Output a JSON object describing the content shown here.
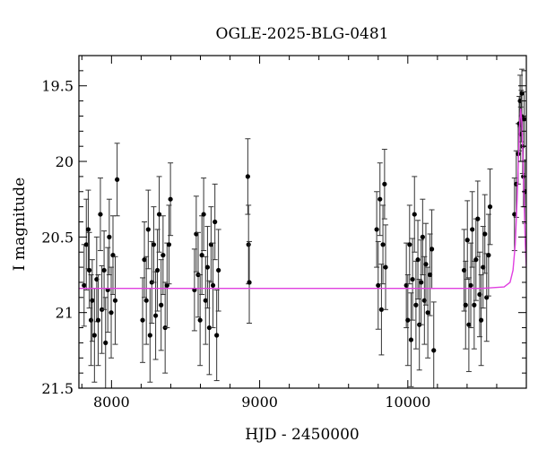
{
  "chart_data": {
    "type": "scatter",
    "title": "OGLE-2025-BLG-0481",
    "xlabel": "HJD - 2450000",
    "ylabel": "I magnitude",
    "xlim": [
      7780,
      10800
    ],
    "ylim": [
      19.3,
      21.5
    ],
    "y_inverted": true,
    "grid": false,
    "x_ticks": [
      8000,
      9000,
      10000
    ],
    "y_ticks": [
      19.5,
      20,
      20.5,
      21,
      21.5
    ],
    "y_tick_labels": [
      "19.5",
      "20",
      "20.5",
      "21",
      "21.5"
    ],
    "colors": {
      "points": "#000000",
      "model": "#e040e0"
    },
    "series": [
      {
        "kind": "points_with_errorbars",
        "points": [
          [
            7815,
            20.82,
            0.27
          ],
          [
            7830,
            20.55,
            0.3
          ],
          [
            7843,
            20.45,
            0.26
          ],
          [
            7850,
            20.72,
            0.25
          ],
          [
            7862,
            21.05,
            0.3
          ],
          [
            7870,
            20.92,
            0.27
          ],
          [
            7885,
            21.15,
            0.31
          ],
          [
            7900,
            20.78,
            0.28
          ],
          [
            7910,
            21.05,
            0.3
          ],
          [
            7925,
            20.35,
            0.24
          ],
          [
            7935,
            20.98,
            0.29
          ],
          [
            7950,
            20.72,
            0.26
          ],
          [
            7960,
            21.2,
            0.3
          ],
          [
            7975,
            20.85,
            0.28
          ],
          [
            7985,
            20.5,
            0.25
          ],
          [
            7998,
            21.0,
            0.3
          ],
          [
            8010,
            20.62,
            0.26
          ],
          [
            8025,
            20.92,
            0.29
          ],
          [
            8038,
            20.12,
            0.24
          ],
          [
            8210,
            21.05,
            0.28
          ],
          [
            8222,
            20.65,
            0.25
          ],
          [
            8235,
            20.92,
            0.29
          ],
          [
            8248,
            20.45,
            0.26
          ],
          [
            8260,
            21.15,
            0.31
          ],
          [
            8272,
            20.8,
            0.27
          ],
          [
            8285,
            20.55,
            0.25
          ],
          [
            8298,
            21.02,
            0.29
          ],
          [
            8310,
            20.72,
            0.27
          ],
          [
            8322,
            20.35,
            0.25
          ],
          [
            8335,
            20.95,
            0.3
          ],
          [
            8348,
            20.62,
            0.26
          ],
          [
            8362,
            21.1,
            0.3
          ],
          [
            8375,
            20.82,
            0.28
          ],
          [
            8388,
            20.55,
            0.26
          ],
          [
            8398,
            20.25,
            0.24
          ],
          [
            8560,
            20.85,
            0.27
          ],
          [
            8572,
            20.48,
            0.25
          ],
          [
            8585,
            20.75,
            0.28
          ],
          [
            8598,
            21.05,
            0.3
          ],
          [
            8610,
            20.62,
            0.26
          ],
          [
            8622,
            20.35,
            0.24
          ],
          [
            8635,
            20.92,
            0.29
          ],
          [
            8648,
            20.7,
            0.27
          ],
          [
            8660,
            21.1,
            0.31
          ],
          [
            8672,
            20.55,
            0.25
          ],
          [
            8685,
            20.82,
            0.28
          ],
          [
            8698,
            20.4,
            0.25
          ],
          [
            8710,
            21.15,
            0.3
          ],
          [
            8722,
            20.72,
            0.27
          ],
          [
            8920,
            20.1,
            0.25
          ],
          [
            8925,
            20.55,
            0.26
          ],
          [
            8930,
            20.8,
            0.27
          ],
          [
            9790,
            20.45,
            0.25
          ],
          [
            9800,
            20.82,
            0.29
          ],
          [
            9812,
            20.25,
            0.24
          ],
          [
            9822,
            20.98,
            0.3
          ],
          [
            9832,
            20.55,
            0.26
          ],
          [
            9843,
            20.15,
            0.23
          ],
          [
            9850,
            20.7,
            0.28
          ],
          [
            9990,
            20.82,
            0.28
          ],
          [
            10000,
            21.05,
            0.3
          ],
          [
            10012,
            20.55,
            0.26
          ],
          [
            10022,
            21.18,
            0.31
          ],
          [
            10032,
            20.78,
            0.27
          ],
          [
            10045,
            20.35,
            0.25
          ],
          [
            10055,
            20.95,
            0.29
          ],
          [
            10068,
            20.65,
            0.26
          ],
          [
            10078,
            21.08,
            0.3
          ],
          [
            10090,
            20.8,
            0.28
          ],
          [
            10100,
            20.5,
            0.25
          ],
          [
            10112,
            20.92,
            0.29
          ],
          [
            10122,
            20.68,
            0.27
          ],
          [
            10135,
            21.0,
            0.3
          ],
          [
            10150,
            20.75,
            0.27
          ],
          [
            10162,
            20.58,
            0.26
          ],
          [
            10175,
            21.25,
            0.32
          ],
          [
            10380,
            20.72,
            0.27
          ],
          [
            10390,
            20.95,
            0.29
          ],
          [
            10402,
            20.52,
            0.26
          ],
          [
            10412,
            21.08,
            0.31
          ],
          [
            10425,
            20.82,
            0.28
          ],
          [
            10435,
            20.45,
            0.25
          ],
          [
            10448,
            20.95,
            0.29
          ],
          [
            10460,
            20.65,
            0.27
          ],
          [
            10472,
            20.38,
            0.25
          ],
          [
            10485,
            20.88,
            0.28
          ],
          [
            10495,
            21.05,
            0.3
          ],
          [
            10508,
            20.7,
            0.27
          ],
          [
            10520,
            20.48,
            0.26
          ],
          [
            10532,
            20.9,
            0.29
          ],
          [
            10545,
            20.62,
            0.27
          ],
          [
            10555,
            20.3,
            0.25
          ],
          [
            10720,
            20.35,
            0.24
          ],
          [
            10732,
            20.15,
            0.22
          ],
          [
            10745,
            19.95,
            0.2
          ],
          [
            10752,
            19.75,
            0.18
          ],
          [
            10758,
            19.6,
            0.17
          ],
          [
            10762,
            19.82,
            0.18
          ],
          [
            10766,
            19.7,
            0.17
          ],
          [
            10770,
            19.55,
            0.16
          ],
          [
            10775,
            19.9,
            0.18
          ],
          [
            10780,
            20.1,
            0.2
          ],
          [
            10785,
            19.72,
            0.18
          ],
          [
            10790,
            20.2,
            0.21
          ]
        ]
      },
      {
        "kind": "model_line",
        "points": [
          [
            7780,
            20.84
          ],
          [
            10500,
            20.84
          ],
          [
            10650,
            20.83
          ],
          [
            10690,
            20.8
          ],
          [
            10710,
            20.72
          ],
          [
            10725,
            20.55
          ],
          [
            10738,
            20.25
          ],
          [
            10748,
            19.95
          ],
          [
            10755,
            19.75
          ],
          [
            10762,
            19.65
          ],
          [
            10770,
            19.75
          ],
          [
            10778,
            20.0
          ],
          [
            10786,
            20.3
          ],
          [
            10793,
            20.55
          ],
          [
            10800,
            20.7
          ]
        ]
      }
    ]
  }
}
